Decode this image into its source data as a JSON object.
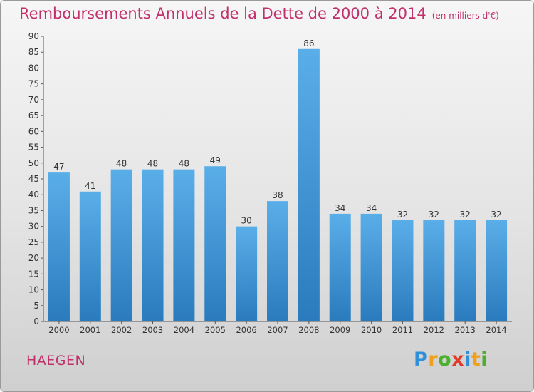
{
  "title": "Remboursements Annuels de la Dette de 2000 à 2014",
  "title_unit": "(en milliers d'€)",
  "location": "HAEGEN",
  "brand": {
    "letters": [
      "P",
      "r",
      "o",
      "x",
      "i",
      "t",
      "i"
    ],
    "colors": [
      "#2f8fd8",
      "#f0a020",
      "#4caf2e",
      "#e03a2a",
      "#2f8fd8",
      "#f0a020",
      "#4caf2e"
    ]
  },
  "colors": {
    "bar_top": "#5aaee8",
    "bar_bottom": "#2a7bbd",
    "title": "#c0306a"
  },
  "chart_data": {
    "type": "bar",
    "categories": [
      "2000",
      "2001",
      "2002",
      "2003",
      "2004",
      "2005",
      "2006",
      "2007",
      "2008",
      "2009",
      "2010",
      "2011",
      "2012",
      "2013",
      "2014"
    ],
    "values": [
      47,
      41,
      48,
      48,
      48,
      49,
      30,
      38,
      86,
      34,
      34,
      32,
      32,
      32,
      32
    ],
    "ylim": [
      0,
      90
    ],
    "yticks": [
      0,
      5,
      10,
      15,
      20,
      25,
      30,
      35,
      40,
      45,
      50,
      55,
      60,
      65,
      70,
      75,
      80,
      85,
      90
    ],
    "grid": false,
    "data_labels": true
  }
}
